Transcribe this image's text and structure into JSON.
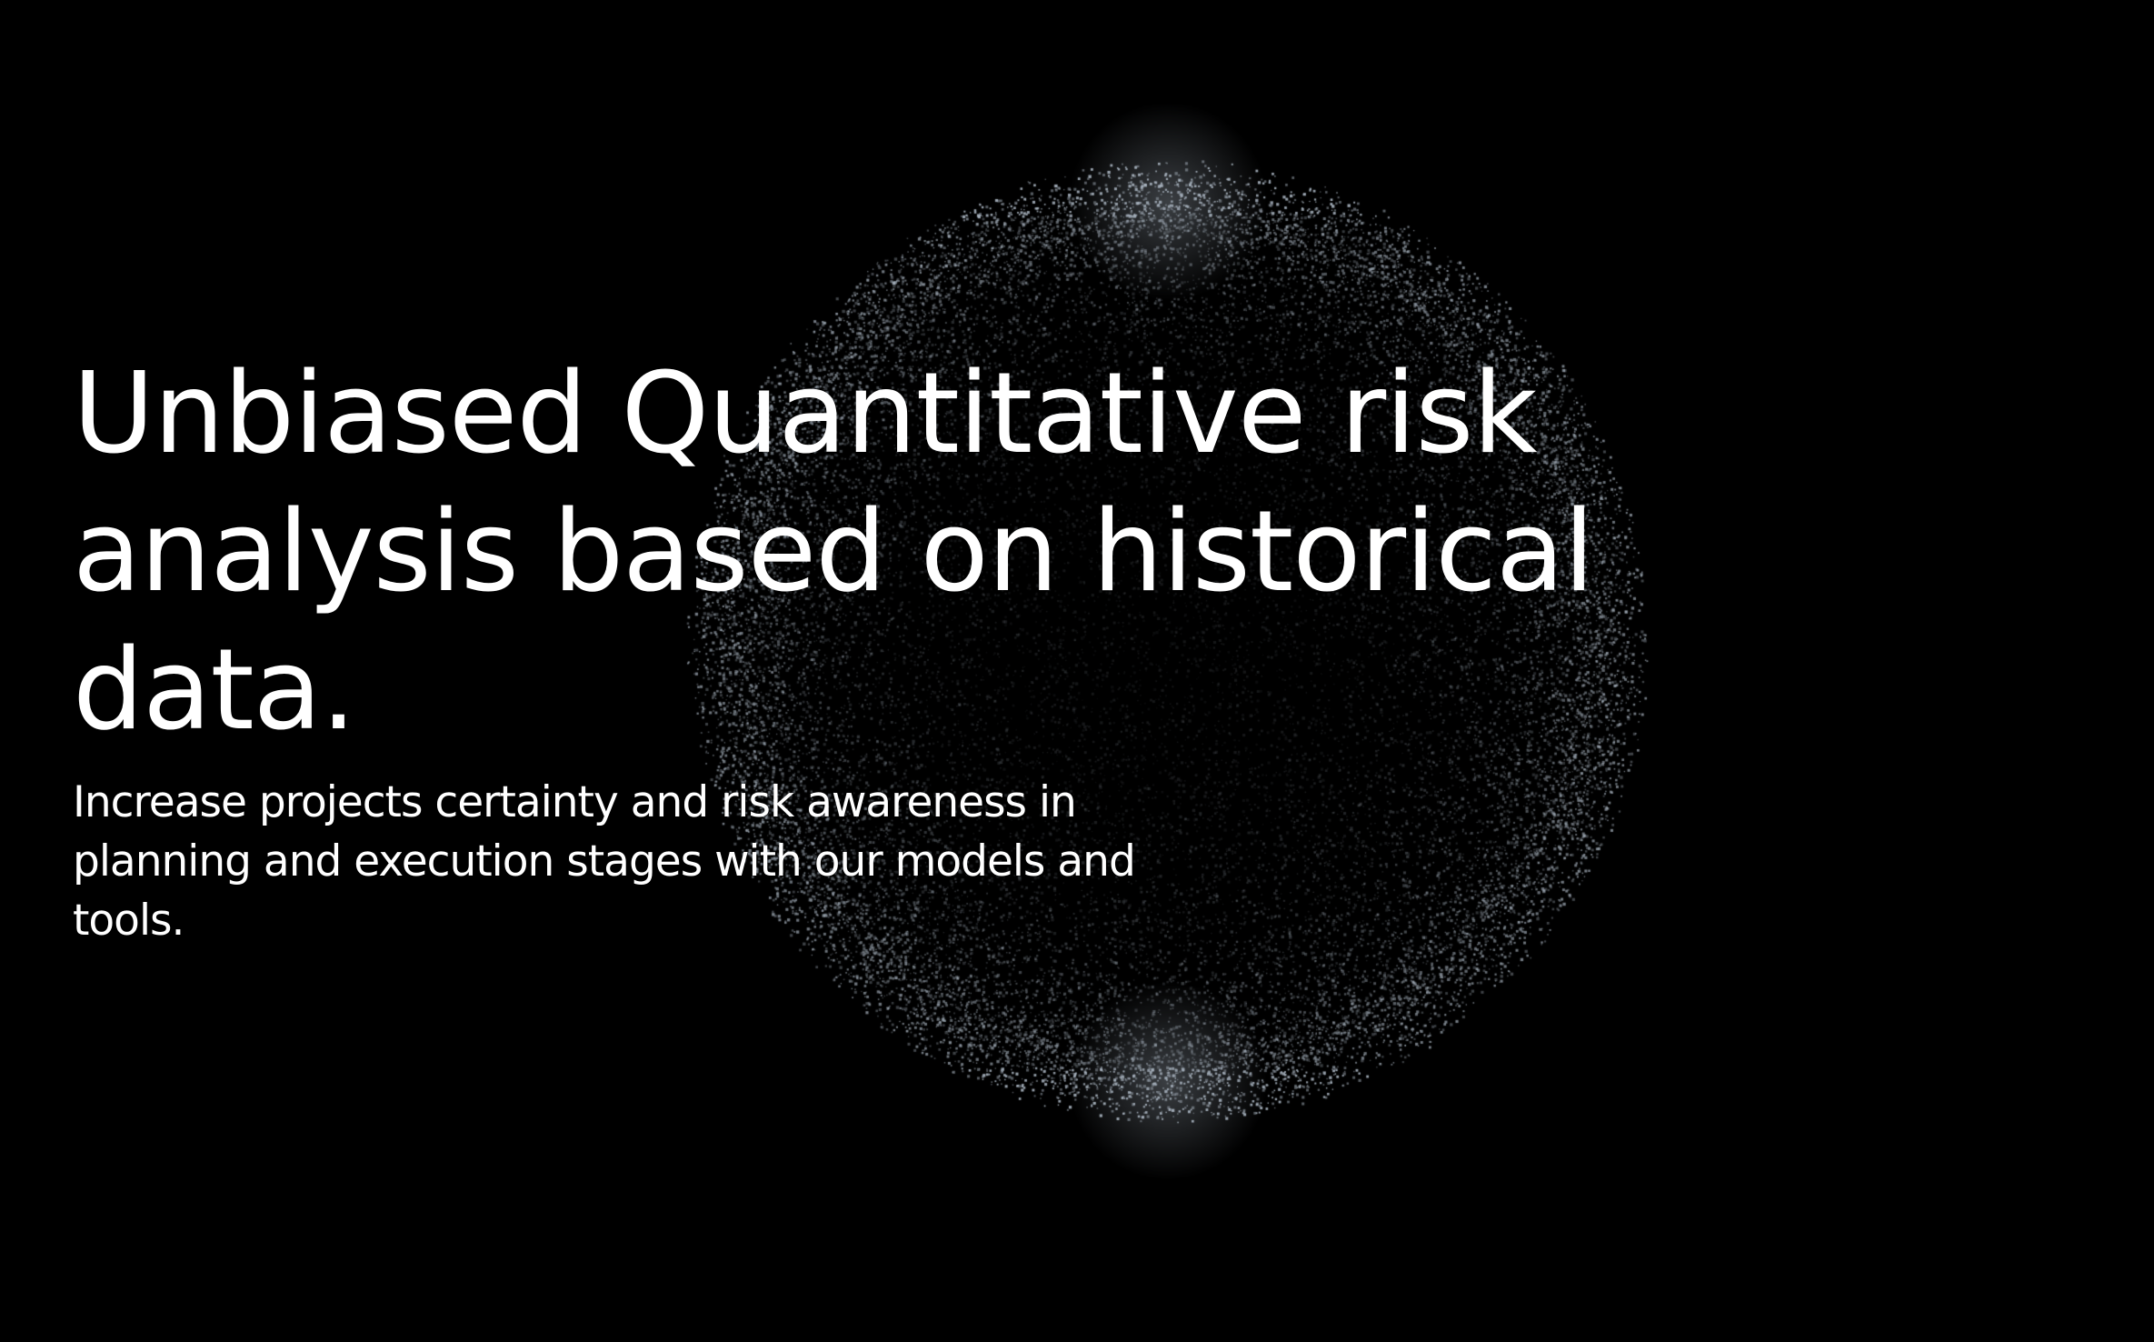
{
  "hero": {
    "title_lines": [
      "Unbiased Quantitative risk",
      "analysis based on historical",
      "data."
    ],
    "subtitle_lines": [
      "Increase projects certainty and risk awareness in",
      "planning and execution stages with our models and",
      "tools."
    ]
  },
  "background": {
    "color": "#000000",
    "particle_color": "#a9b4c0",
    "graphic": "particle-sphere"
  }
}
